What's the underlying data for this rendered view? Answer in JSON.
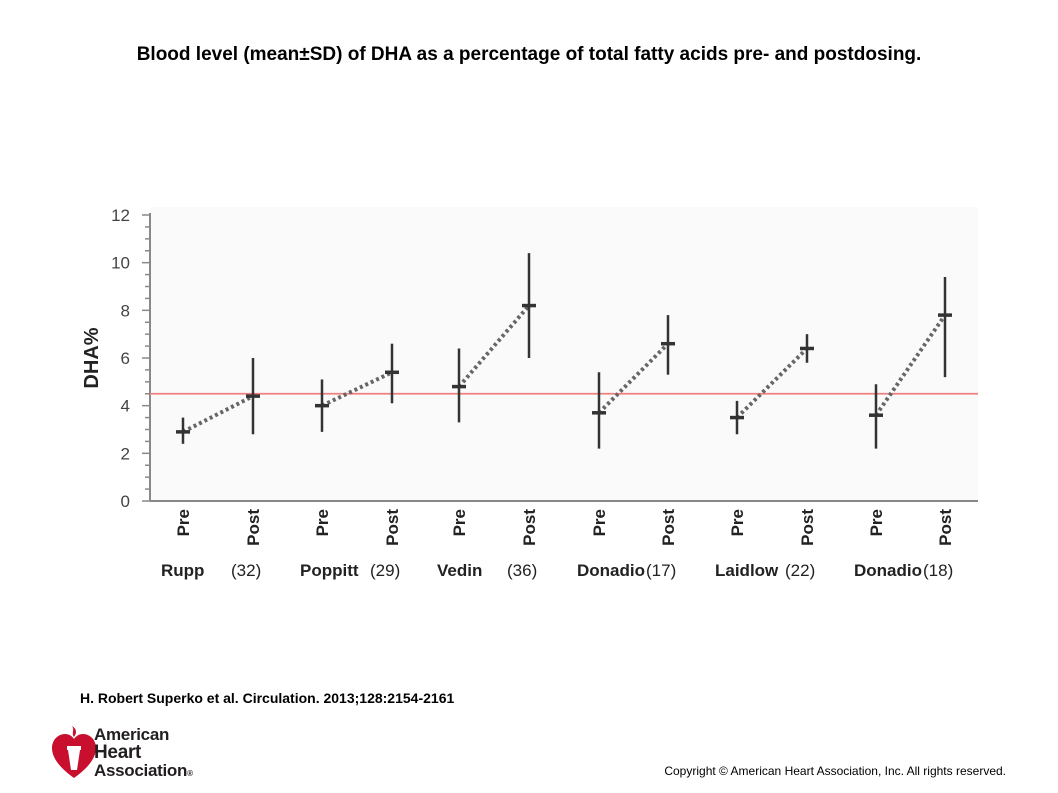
{
  "title": "Blood level (mean±SD) of DHA as a percentage of total fatty acids pre- and postdosing.",
  "citation": "H. Robert Superko et al. Circulation. 2013;128:2154-2161",
  "copyright": "Copyright © American Heart Association, Inc. All rights reserved.",
  "logo": {
    "line1": "American",
    "line2": "Heart",
    "line3": "Association",
    "mark": "®",
    "color": "#c8102e"
  },
  "chart_data": {
    "type": "scatter",
    "ylabel": "DHA%",
    "ylim": [
      0,
      12
    ],
    "yticks": [
      "0",
      "2",
      "4",
      "6",
      "8",
      "10",
      "12"
    ],
    "reference_line": {
      "y": 4.5,
      "color": "#f08080"
    },
    "grid": false,
    "groups": [
      {
        "name": "Rupp",
        "n": "(32)",
        "pre": {
          "label": "Pre",
          "mean": 2.9,
          "low": 2.4,
          "high": 3.5
        },
        "post": {
          "label": "Post",
          "mean": 4.4,
          "low": 2.8,
          "high": 6.0
        }
      },
      {
        "name": "Poppitt",
        "n": "(29)",
        "pre": {
          "label": "Pre",
          "mean": 4.0,
          "low": 2.9,
          "high": 5.1
        },
        "post": {
          "label": "Post",
          "mean": 5.4,
          "low": 4.1,
          "high": 6.6
        }
      },
      {
        "name": "Vedin",
        "n": "(36)",
        "pre": {
          "label": "Pre",
          "mean": 4.8,
          "low": 3.3,
          "high": 6.4
        },
        "post": {
          "label": "Post",
          "mean": 8.2,
          "low": 6.0,
          "high": 10.4
        }
      },
      {
        "name": "Donadio",
        "n": "(17)",
        "pre": {
          "label": "Pre",
          "mean": 3.7,
          "low": 2.2,
          "high": 5.4
        },
        "post": {
          "label": "Post",
          "mean": 6.6,
          "low": 5.3,
          "high": 7.8
        }
      },
      {
        "name": "Laidlow",
        "n": "(22)",
        "pre": {
          "label": "Pre",
          "mean": 3.5,
          "low": 2.8,
          "high": 4.2
        },
        "post": {
          "label": "Post",
          "mean": 6.4,
          "low": 5.8,
          "high": 7.0
        }
      },
      {
        "name": "Donadio",
        "n": "(18)",
        "pre": {
          "label": "Pre",
          "mean": 3.6,
          "low": 2.2,
          "high": 4.9
        },
        "post": {
          "label": "Post",
          "mean": 7.8,
          "low": 5.2,
          "high": 9.4
        }
      }
    ]
  }
}
